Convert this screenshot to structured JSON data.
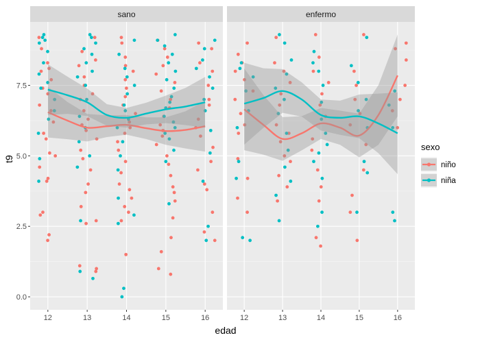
{
  "chart_data": {
    "type": "scatter",
    "xlabel": "edad",
    "ylabel": "t9",
    "x_ticks": [
      12,
      13,
      14,
      15,
      16
    ],
    "y_ticks": [
      0.0,
      2.5,
      5.0,
      7.5
    ],
    "y_tick_labels": [
      "0.0",
      "2.5",
      "5.0",
      "7.5"
    ],
    "xlim": [
      11.55,
      16.45
    ],
    "ylim": [
      -0.46,
      9.75
    ],
    "legend": {
      "title": "sexo",
      "placement": "right",
      "entries": [
        {
          "label": "niño",
          "color": "#F8766D"
        },
        {
          "label": "niña",
          "color": "#00BFC4"
        }
      ]
    },
    "panels": [
      {
        "name": "sano",
        "series": [
          {
            "name": "niño",
            "color": "#F8766D",
            "points": [
              {
                "x": 12,
                "y": [
                  2.0,
                  2.2,
                  2.9,
                  3.0,
                  4.1,
                  4.2,
                  4.6,
                  5.0,
                  5.1,
                  5.6,
                  5.8,
                  6.2,
                  6.6,
                  6.8,
                  7.2,
                  7.4,
                  7.7,
                  8.0,
                  8.1,
                  8.3,
                  8.8,
                  9.2
                ]
              },
              {
                "x": 13,
                "y": [
                  0.9,
                  1.0,
                  1.1,
                  2.6,
                  2.7,
                  3.2,
                  3.7,
                  4.0,
                  4.5,
                  4.9,
                  5.2,
                  5.6,
                  5.9,
                  6.1,
                  6.3,
                  6.6,
                  7.0,
                  7.2,
                  7.5,
                  7.8,
                  8.2,
                  8.4,
                  8.7,
                  9.2
                ]
              },
              {
                "x": 14,
                "y": [
                  1.5,
                  2.7,
                  3.0,
                  3.2,
                  3.5,
                  3.8,
                  4.0,
                  4.4,
                  4.8,
                  5.2,
                  5.5,
                  5.8,
                  6.0,
                  6.2,
                  6.5,
                  6.8,
                  7.1,
                  7.4,
                  7.7,
                  8.0,
                  8.2,
                  8.5,
                  9.0,
                  9.2
                ]
              },
              {
                "x": 15,
                "y": [
                  0.8,
                  1.0,
                  1.6,
                  2.1,
                  2.8,
                  3.4,
                  3.7,
                  3.9,
                  4.3,
                  4.7,
                  5.0,
                  5.4,
                  5.7,
                  5.9,
                  6.1,
                  6.4,
                  6.7,
                  7.0,
                  7.3,
                  7.6,
                  7.9,
                  8.2,
                  8.5,
                  8.8,
                  9.1
                ]
              },
              {
                "x": 16,
                "y": [
                  2.0,
                  2.3,
                  3.0,
                  3.8,
                  4.0,
                  4.5,
                  4.8,
                  5.3,
                  5.7,
                  6.0,
                  6.3,
                  6.8,
                  7.0,
                  7.5,
                  8.0,
                  8.3,
                  8.8,
                  9.0
                ]
              }
            ],
            "smooth": {
              "x": [
                12,
                12.5,
                13,
                13.5,
                14,
                14.5,
                15,
                15.5,
                16
              ],
              "y": [
                6.55,
                6.25,
                6.0,
                6.05,
                6.1,
                5.98,
                5.88,
                5.92,
                6.05
              ]
            }
          },
          {
            "name": "niña",
            "color": "#00BFC4",
            "points": [
              {
                "x": 12,
                "y": [
                  4.1,
                  4.9,
                  5.8,
                  6.3,
                  6.6,
                  7.0,
                  7.4,
                  7.6,
                  7.9,
                  8.3,
                  8.7,
                  9.0,
                  9.1,
                  9.2,
                  9.3
                ]
              },
              {
                "x": 13,
                "y": [
                  0.65,
                  0.9,
                  2.7,
                  4.6,
                  5.0,
                  5.5,
                  6.0,
                  6.4,
                  7.0,
                  7.5,
                  7.8,
                  8.0,
                  8.3,
                  8.6,
                  8.8,
                  9.0,
                  9.2,
                  9.3
                ]
              },
              {
                "x": 14,
                "y": [
                  0.0,
                  0.3,
                  2.6,
                  2.9,
                  3.5,
                  4.5,
                  5.0,
                  5.5,
                  6.0,
                  6.3,
                  6.6,
                  6.8,
                  7.2,
                  7.5,
                  7.8,
                  8.1,
                  8.6,
                  9.1
                ]
              },
              {
                "x": 15,
                "y": [
                  3.3,
                  4.8,
                  5.2,
                  5.6,
                  5.8,
                  6.0,
                  6.2,
                  6.4,
                  6.7,
                  6.9,
                  7.1,
                  7.4,
                  7.7,
                  8.0,
                  8.3,
                  8.6,
                  8.9,
                  9.1,
                  9.3
                ]
              },
              {
                "x": 16,
                "y": [
                  2.0,
                  2.5,
                  4.1,
                  5.1,
                  5.9,
                  6.6,
                  7.0,
                  7.4,
                  7.8,
                  8.1,
                  8.4,
                  8.8,
                  9.1
                ]
              }
            ],
            "smooth": {
              "x": [
                12,
                12.5,
                13,
                13.5,
                14,
                14.5,
                15,
                15.5,
                16
              ],
              "y": [
                7.35,
                7.15,
                6.9,
                6.45,
                6.35,
                6.5,
                6.65,
                6.75,
                6.9
              ]
            }
          }
        ]
      },
      {
        "name": "enfermo",
        "series": [
          {
            "name": "niño",
            "color": "#F8766D",
            "points": [
              {
                "x": 12,
                "y": [
                  3.0,
                  3.5,
                  4.2,
                  4.9,
                  5.8,
                  6.1,
                  6.5,
                  7.0,
                  7.3,
                  7.7,
                  8.0,
                  8.3,
                  8.6,
                  9.0
                ]
              },
              {
                "x": 13,
                "y": [
                  3.4,
                  3.9,
                  4.3,
                  4.8,
                  5.0,
                  5.5,
                  5.8,
                  6.1,
                  6.8,
                  7.2,
                  7.6,
                  8.0,
                  8.3,
                  9.2
                ]
              },
              {
                "x": 14,
                "y": [
                  1.8,
                  2.1,
                  3.4,
                  3.9,
                  4.5,
                  5.2,
                  5.6,
                  6.4,
                  6.8,
                  7.2,
                  7.6,
                  8.0,
                  8.5,
                  9.3
                ]
              },
              {
                "x": 15,
                "y": [
                  2.0,
                  3.0,
                  3.6,
                  4.5,
                  5.4,
                  6.1,
                  6.5,
                  7.0,
                  7.5,
                  8.0,
                  9.3
                ]
              },
              {
                "x": 16,
                "y": [
                  6.0,
                  6.6,
                  7.0,
                  7.5,
                  8.4,
                  8.8,
                  9.0
                ]
              }
            ],
            "smooth": {
              "x": [
                12,
                12.5,
                13,
                13.5,
                14,
                14.5,
                15,
                15.5,
                16
              ],
              "y": [
                6.65,
                6.1,
                5.6,
                5.8,
                6.15,
                6.0,
                5.72,
                6.45,
                7.85
              ]
            }
          },
          {
            "name": "niña",
            "color": "#00BFC4",
            "points": [
              {
                "x": 12,
                "y": [
                  2.0,
                  2.1,
                  4.2,
                  4.8,
                  6.0,
                  6.6,
                  7.3,
                  7.8,
                  8.1,
                  8.3
                ]
              },
              {
                "x": 13,
                "y": [
                  2.7,
                  3.6,
                  4.1,
                  4.6,
                  5.2,
                  5.8,
                  6.5,
                  7.0,
                  7.4,
                  7.9,
                  8.4,
                  9.0,
                  9.3
                ]
              },
              {
                "x": 14,
                "y": [
                  2.5,
                  3.0,
                  4.2,
                  4.8,
                  5.1,
                  5.4,
                  5.8,
                  6.3,
                  6.9,
                  7.5,
                  8.0,
                  8.3,
                  8.7
                ]
              },
              {
                "x": 15,
                "y": [
                  3.0,
                  4.4,
                  4.8,
                  6.0,
                  6.6,
                  7.0,
                  7.6,
                  8.2,
                  9.2
                ]
              },
              {
                "x": 16,
                "y": [
                  2.7,
                  3.0,
                  6.0,
                  6.8,
                  7.3
                ]
              }
            ],
            "smooth": {
              "x": [
                12,
                12.5,
                13,
                13.5,
                14,
                14.5,
                15,
                15.5,
                16
              ],
              "y": [
                6.85,
                7.05,
                7.3,
                7.0,
                6.45,
                6.35,
                6.4,
                6.15,
                5.8
              ]
            }
          }
        ]
      }
    ]
  }
}
